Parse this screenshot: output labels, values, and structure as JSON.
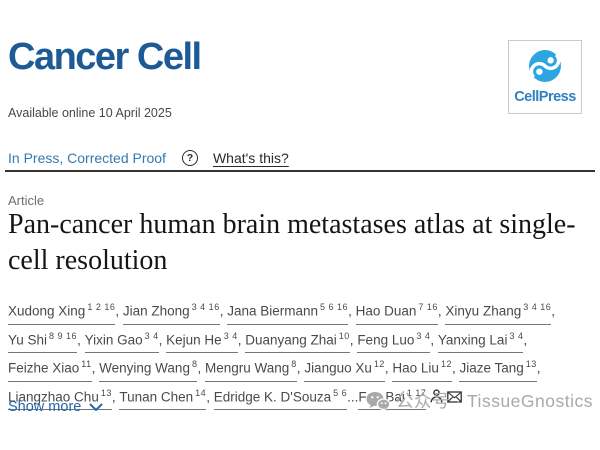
{
  "journal": {
    "name": "Cancer Cell",
    "publisher": "CellPress",
    "available_online": "Available online 10 April 2025"
  },
  "status_bar": {
    "status_link": "In Press, Corrected Proof",
    "help_icon": "?",
    "whats_this_link": "What's this?"
  },
  "article": {
    "type_label": "Article",
    "title": "Pan-cancer human brain metastases atlas at single-cell resolution",
    "authors": [
      {
        "name": "Xudong Xing",
        "sups": "1 2 16",
        "sep": ", "
      },
      {
        "name": "Jian Zhong",
        "sups": "3 4 16",
        "sep": ", "
      },
      {
        "name": "Jana Biermann",
        "sups": "5 6 16",
        "sep": ", "
      },
      {
        "name": "Hao Duan",
        "sups": "7 16",
        "sep": ", "
      },
      {
        "name": "Xinyu Zhang",
        "sups": "3 4 16",
        "sep": ", "
      },
      {
        "name": "Yu Shi",
        "sups": "8 9 16",
        "sep": ", "
      },
      {
        "name": "Yixin Gao",
        "sups": "3 4",
        "sep": ", "
      },
      {
        "name": "Kejun He",
        "sups": "3 4",
        "sep": ", "
      },
      {
        "name": "Duanyang Zhai",
        "sups": "10",
        "sep": ", "
      },
      {
        "name": "Feng Luo",
        "sups": "3 4",
        "sep": ", "
      },
      {
        "name": "Yanxing Lai",
        "sups": "3 4",
        "sep": ", "
      },
      {
        "name": "Feizhe Xiao",
        "sups": "11",
        "sep": ", "
      },
      {
        "name": "Wenying Wang",
        "sups": "8",
        "sep": ", "
      },
      {
        "name": "Mengru Wang",
        "sups": "8",
        "sep": ", "
      },
      {
        "name": "Jianguo Xu",
        "sups": "12",
        "sep": ", "
      },
      {
        "name": "Hao Liu",
        "sups": "12",
        "sep": ", "
      },
      {
        "name": "Jiaze Tang",
        "sups": "13",
        "sep": ", "
      },
      {
        "name": "Liangzhao Chu",
        "sups": "13",
        "sep": ", "
      },
      {
        "name": "Tunan Chen",
        "sups": "14",
        "sep": ", "
      },
      {
        "name": "Edridge K. D'Souza",
        "sups": "5 6",
        "sep": "..."
      },
      {
        "name": "Fan Bai",
        "sups": "1 17",
        "sep": "",
        "icons": [
          "person-icon",
          "envelope-icon"
        ]
      }
    ],
    "show_more_label": "Show more"
  },
  "watermark": {
    "text": "公众号 · TissueGnostics",
    "icon": "wechat-icon"
  },
  "colors": {
    "journal_logo_blue": "#1d5a96",
    "cellpress_icon_blue": "#2ca5e0",
    "cellpress_text_blue": "#2e80c3",
    "in_press_link_blue": "#3579ad",
    "show_more_blue": "#2268ad",
    "title_black": "#151515",
    "author_gray": "#4a4a4a",
    "watermark_gray": "#a9a9a9"
  }
}
